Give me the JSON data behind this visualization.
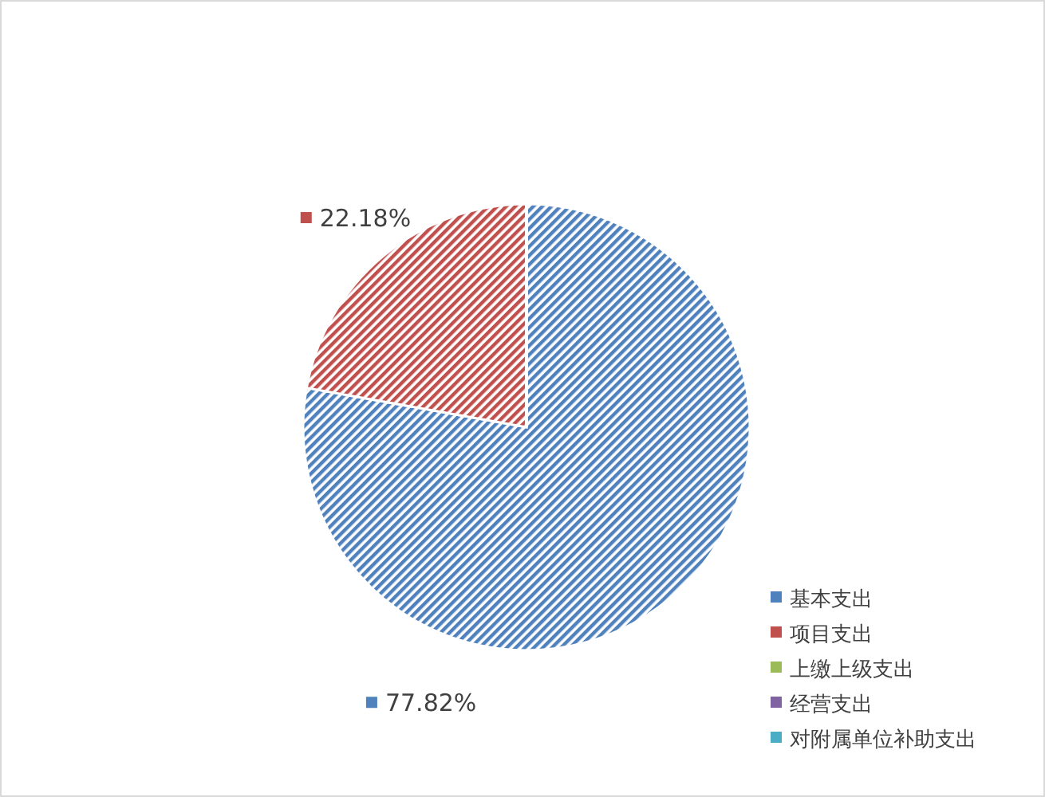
{
  "chart_data": {
    "type": "pie",
    "categories": [
      "基本支出",
      "项目支出",
      "上缴上级支出",
      "经营支出",
      "对附属单位补助支出"
    ],
    "values": [
      77.82,
      22.18,
      0,
      0,
      0
    ],
    "colors": [
      "#4f81bd",
      "#c0504d",
      "#9bbb59",
      "#8064a2",
      "#4bacc6"
    ],
    "value_labels": [
      "77.82%",
      "22.18%",
      null,
      null,
      null
    ],
    "legend": "bottom right"
  }
}
